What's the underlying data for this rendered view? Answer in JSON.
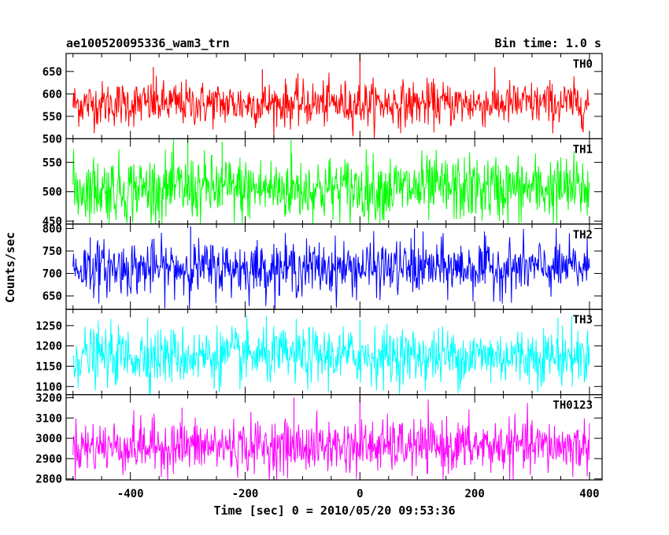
{
  "chart_data": {
    "type": "line",
    "title": "ae100520095336_wam3_trn",
    "bin_time_label": "Bin time: 1.0 s",
    "xlabel": "Time [sec] 0 = 2010/05/20 09:53:36",
    "ylabel": "Counts/sec",
    "xlim": [
      -512,
      422
    ],
    "x_ticks": [
      -400,
      -200,
      0,
      200,
      400
    ],
    "x_range": [
      -500,
      400
    ],
    "grid": false,
    "panels": [
      {
        "name": "TH0",
        "color": "#ff0000",
        "ylim": [
          500,
          690
        ],
        "y_ticks": [
          500,
          550,
          600,
          650
        ],
        "mean": 578,
        "noise": 25,
        "spikes": [
          [
            0,
            690
          ],
          [
            -360,
            660
          ],
          [
            -170,
            655
          ]
        ]
      },
      {
        "name": "TH1",
        "color": "#00ff00",
        "ylim": [
          445,
          590
        ],
        "y_ticks": [
          450,
          500,
          550
        ],
        "mean": 505,
        "noise": 28,
        "spikes": [
          [
            -300,
            590
          ],
          [
            -240,
            585
          ],
          [
            -120,
            588
          ]
        ]
      },
      {
        "name": "TH2",
        "color": "#0000ff",
        "ylim": [
          620,
          810
        ],
        "y_ticks": [
          650,
          700,
          750,
          800
        ],
        "mean": 712,
        "noise": 30,
        "spikes": [
          [
            -295,
            805
          ],
          [
            95,
            800
          ],
          [
            -470,
            780
          ]
        ]
      },
      {
        "name": "TH3",
        "color": "#00ffff",
        "ylim": [
          1080,
          1290
        ],
        "y_ticks": [
          1100,
          1150,
          1200,
          1250
        ],
        "mean": 1175,
        "noise": 35,
        "spikes": [
          [
            -370,
            1270
          ],
          [
            345,
            1270
          ],
          [
            0,
            1265
          ]
        ]
      },
      {
        "name": "TH0123",
        "color": "#ff00ff",
        "ylim": [
          2795,
          3215
        ],
        "y_ticks": [
          2800,
          2900,
          3000,
          3100,
          3200
        ],
        "mean": 2960,
        "noise": 65,
        "spikes": [
          [
            0,
            3210
          ],
          [
            -115,
            3200
          ],
          [
            -310,
            3150
          ]
        ]
      }
    ]
  }
}
